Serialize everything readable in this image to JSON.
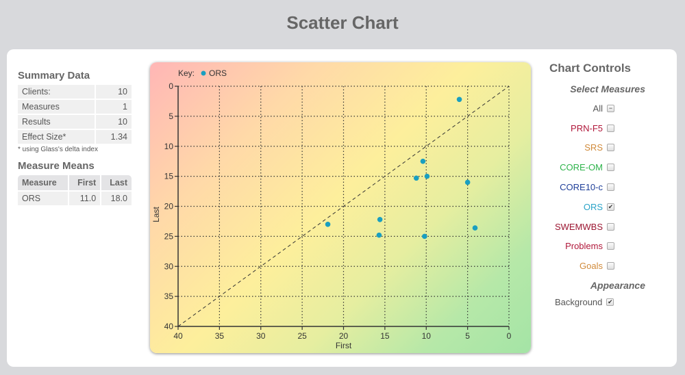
{
  "page": {
    "title": "Scatter Chart"
  },
  "summary": {
    "heading": "Summary Data",
    "rows": [
      {
        "label": "Clients:",
        "value": "10"
      },
      {
        "label": "Measures",
        "value": "1"
      },
      {
        "label": "Results",
        "value": "10"
      },
      {
        "label": "Effect Size*",
        "value": "1.34"
      }
    ],
    "note": "* using Glass's delta index"
  },
  "means": {
    "heading": "Measure Means",
    "columns": [
      "Measure",
      "First",
      "Last"
    ],
    "rows": [
      {
        "measure": "ORS",
        "first": "11.0",
        "last": "18.0"
      }
    ]
  },
  "controls": {
    "heading": "Chart Controls",
    "select_heading": "Select Measures",
    "measures": [
      {
        "label": "All",
        "color": "#555555",
        "state": "indeterminate"
      },
      {
        "label": "PRN-F5",
        "color": "#b0173a",
        "state": "unchecked"
      },
      {
        "label": "SRS",
        "color": "#d08a3a",
        "state": "unchecked"
      },
      {
        "label": "CORE-OM",
        "color": "#2db34a",
        "state": "unchecked"
      },
      {
        "label": "CORE10-c",
        "color": "#1f3f99",
        "state": "unchecked"
      },
      {
        "label": "ORS",
        "color": "#2aa3c7",
        "state": "checked"
      },
      {
        "label": "SWEMWBS",
        "color": "#9b1530",
        "state": "unchecked"
      },
      {
        "label": "Problems",
        "color": "#b0173a",
        "state": "unchecked"
      },
      {
        "label": "Goals",
        "color": "#d08a3a",
        "state": "unchecked"
      }
    ],
    "appearance_heading": "Appearance",
    "background_label": "Background",
    "background_checked": true
  },
  "chart_data": {
    "type": "scatter",
    "title": "Scatter Chart",
    "key_label": "Key:",
    "legend": [
      {
        "name": "ORS",
        "color": "#1a9fc0"
      }
    ],
    "xlabel": "First",
    "ylabel": "Last",
    "xlim": [
      40,
      0
    ],
    "ylim": [
      40,
      0
    ],
    "x_ticks": [
      40,
      35,
      30,
      25,
      20,
      15,
      10,
      5,
      0
    ],
    "y_ticks": [
      0,
      5,
      10,
      15,
      20,
      25,
      30,
      35,
      40
    ],
    "grid": true,
    "reference_line": "y = x (dashed)",
    "series": [
      {
        "name": "ORS",
        "points": [
          {
            "x": 6.0,
            "y": 2.2
          },
          {
            "x": 10.4,
            "y": 12.5
          },
          {
            "x": 11.2,
            "y": 15.3
          },
          {
            "x": 9.9,
            "y": 15.0
          },
          {
            "x": 5.0,
            "y": 16.0
          },
          {
            "x": 21.9,
            "y": 23.0
          },
          {
            "x": 15.6,
            "y": 22.2
          },
          {
            "x": 15.7,
            "y": 24.8
          },
          {
            "x": 10.2,
            "y": 25.0
          },
          {
            "x": 4.1,
            "y": 23.6
          }
        ]
      }
    ]
  }
}
